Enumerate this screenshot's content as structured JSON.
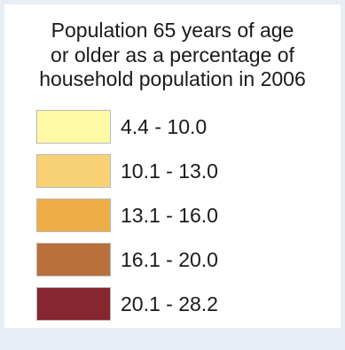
{
  "chart_data": {
    "type": "legend",
    "title_lines": [
      "Population 65 years of age",
      "or older as a percentage of",
      "household population in 2006"
    ],
    "classes": [
      {
        "label": "4.4 - 10.0",
        "color": "#fef9a4"
      },
      {
        "label": "10.1 - 13.0",
        "color": "#f8d274"
      },
      {
        "label": "13.1 - 16.0",
        "color": "#efad47"
      },
      {
        "label": "16.1 - 20.0",
        "color": "#b9703a"
      },
      {
        "label": "20.1 - 28.2",
        "color": "#86262f"
      }
    ]
  }
}
